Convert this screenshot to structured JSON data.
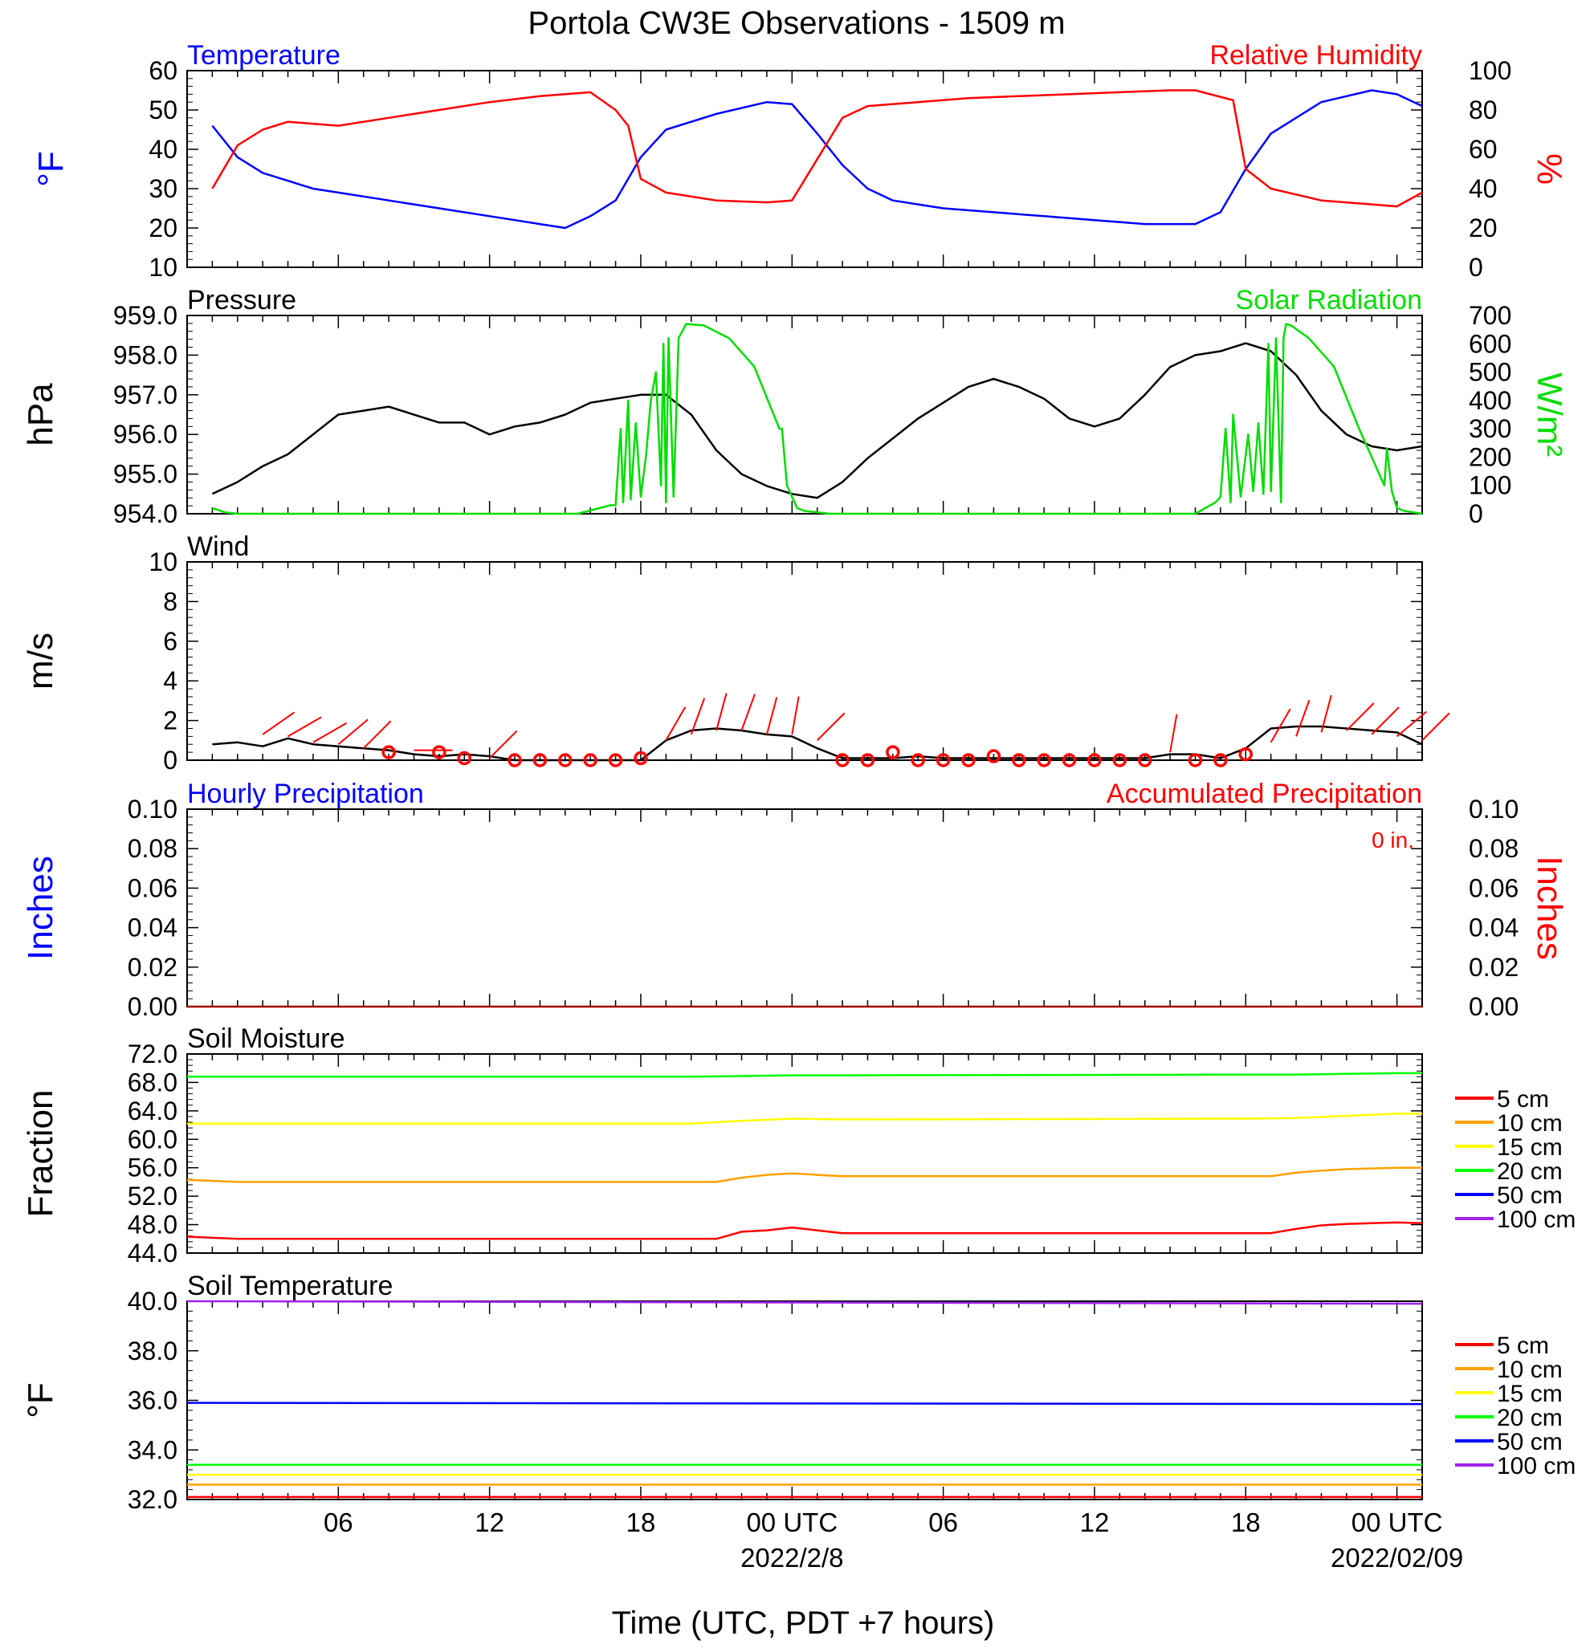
{
  "title": "Portola CW3E Observations - 1509 m",
  "x_axis": {
    "title": "Time (UTC, PDT +7 hours)",
    "tick_labels": [
      {
        "hour": 6,
        "label": "06",
        "date": ""
      },
      {
        "hour": 12,
        "label": "12",
        "date": ""
      },
      {
        "hour": 18,
        "label": "18",
        "date": ""
      },
      {
        "hour": 24,
        "label": "00 UTC",
        "date": "2022/2/8"
      },
      {
        "hour": 30,
        "label": "06",
        "date": ""
      },
      {
        "hour": 36,
        "label": "12",
        "date": ""
      },
      {
        "hour": 42,
        "label": "18",
        "date": ""
      },
      {
        "hour": 48,
        "label": "00 UTC",
        "date": "2022/02/09"
      }
    ]
  },
  "colors": {
    "temperature": "#0000ff",
    "humidity": "#ff0000",
    "pressure": "#000000",
    "solar": "#00dd00",
    "wind": "#000000",
    "barb": "#ff0000",
    "precip": "#a00000",
    "depth_5": "#ff0000",
    "depth_10": "#ffa000",
    "depth_15": "#ffff00",
    "depth_20": "#00ff00",
    "depth_50": "#0000ff",
    "depth_100": "#a020f0"
  },
  "chart_data": [
    {
      "type": "line",
      "left_title": "Temperature",
      "right_title": "Relative Humidity",
      "ylabel_left": "°F",
      "ylabel_right": "%",
      "ylim_left": [
        10,
        60
      ],
      "ylim_right": [
        0,
        100
      ],
      "yticks_left": [
        "60",
        "50",
        "40",
        "30",
        "20",
        "10"
      ],
      "yticks_right": [
        "100",
        "80",
        "60",
        "40",
        "20",
        "0"
      ],
      "series": [
        {
          "axis": "left",
          "color": "#0000ff",
          "x": [
            1,
            2,
            3,
            4,
            5,
            6,
            8,
            10,
            12,
            13,
            14,
            15,
            16,
            17,
            18,
            19,
            21,
            23,
            24,
            25,
            26,
            27,
            28,
            30,
            32,
            34,
            36,
            38,
            40,
            41,
            42,
            43,
            45,
            47,
            48,
            49
          ],
          "y": [
            46,
            38,
            34,
            32,
            30,
            29,
            27,
            25,
            23,
            22,
            21,
            20,
            23,
            27,
            38,
            45,
            49,
            52,
            51.5,
            44,
            36,
            30,
            27,
            25,
            24,
            23,
            22,
            21,
            21,
            24,
            35,
            44,
            52,
            55,
            54,
            51
          ]
        },
        {
          "axis": "right",
          "color": "#ff0000",
          "x": [
            1,
            2,
            3,
            4,
            6,
            8,
            10,
            12,
            14,
            16,
            17,
            17.5,
            18,
            19,
            21,
            23,
            24,
            25,
            26,
            27,
            29,
            31,
            33,
            35,
            37,
            39,
            40,
            41.5,
            42,
            43,
            45,
            47,
            48,
            49
          ],
          "y": [
            40,
            62,
            70,
            74,
            72,
            76,
            80,
            84,
            87,
            89,
            80,
            72,
            45,
            38,
            34,
            33,
            34,
            55,
            76,
            82,
            84,
            86,
            87,
            88,
            89,
            90,
            90,
            85,
            50,
            40,
            34,
            32,
            31,
            38
          ]
        }
      ]
    },
    {
      "type": "line",
      "left_title": "Pressure",
      "right_title": "Solar Radiation",
      "ylabel_left": "hPa",
      "ylabel_right": "W/m²",
      "ylim_left": [
        954,
        959
      ],
      "ylim_right": [
        0,
        700
      ],
      "yticks_left": [
        "959.0",
        "958.0",
        "957.0",
        "956.0",
        "955.0",
        "954.0"
      ],
      "yticks_right": [
        "700",
        "600",
        "500",
        "400",
        "300",
        "200",
        "100",
        "0"
      ],
      "series": [
        {
          "axis": "left",
          "color": "#000000",
          "x": [
            1,
            2,
            3,
            4,
            5,
            6,
            7,
            8,
            10,
            11,
            12,
            13,
            14,
            15,
            16,
            17,
            18,
            19,
            20,
            21,
            22,
            23,
            24,
            25,
            26,
            27,
            28,
            29,
            30,
            31,
            32,
            33,
            34,
            35,
            36,
            37,
            38,
            39,
            40,
            41,
            42,
            43,
            44,
            45,
            46,
            47,
            48,
            49
          ],
          "y": [
            954.5,
            954.8,
            955.2,
            955.5,
            956.0,
            956.5,
            956.6,
            956.7,
            956.3,
            956.3,
            956.0,
            956.2,
            956.3,
            956.5,
            956.8,
            956.9,
            957.0,
            957.0,
            956.5,
            955.6,
            955.0,
            954.7,
            954.5,
            954.4,
            954.8,
            955.4,
            955.9,
            956.4,
            956.8,
            957.2,
            957.4,
            957.2,
            956.9,
            956.4,
            956.2,
            956.4,
            957.0,
            957.7,
            958.0,
            958.1,
            958.3,
            958.1,
            957.5,
            956.6,
            956.0,
            955.7,
            955.6,
            955.7
          ]
        },
        {
          "axis": "right",
          "color": "#00dd00",
          "x": [
            1,
            1.5,
            2,
            15.5,
            16.8,
            17,
            17.2,
            17.3,
            17.5,
            17.6,
            17.8,
            18,
            18.2,
            18.4,
            18.6,
            18.8,
            18.9,
            19.0,
            19.1,
            19.3,
            19.5,
            19.8,
            20.5,
            21.5,
            22.5,
            23.5,
            23.6,
            23.8,
            24.2,
            24.5,
            25,
            25.5,
            26,
            40,
            40.8,
            41,
            41.2,
            41.4,
            41.5,
            41.8,
            42.1,
            42.3,
            42.5,
            42.7,
            42.9,
            43.0,
            43.2,
            43.4,
            43.5,
            43.6,
            43.8,
            44.5,
            45.5,
            46.5,
            47.5,
            47.6,
            47.8,
            48.0,
            48.3,
            49
          ],
          "y": [
            20,
            5,
            0,
            0,
            30,
            30,
            300,
            40,
            400,
            50,
            320,
            60,
            200,
            400,
            500,
            100,
            600,
            40,
            620,
            60,
            620,
            670,
            665,
            620,
            520,
            300,
            300,
            100,
            20,
            10,
            5,
            0,
            0,
            0,
            40,
            60,
            300,
            40,
            350,
            60,
            280,
            80,
            320,
            70,
            600,
            80,
            620,
            40,
            620,
            670,
            665,
            620,
            520,
            300,
            100,
            230,
            80,
            20,
            10,
            0
          ]
        }
      ]
    },
    {
      "type": "line",
      "left_title": "Wind",
      "ylabel_left": "m/s",
      "ylim_left": [
        0,
        10
      ],
      "yticks_left": [
        "10",
        "8",
        "6",
        "4",
        "2",
        "0"
      ],
      "series": [
        {
          "axis": "left",
          "color": "#000000",
          "x": [
            1,
            2,
            3,
            4,
            5,
            6,
            7,
            8,
            9,
            10,
            11,
            12,
            13,
            14,
            15,
            16,
            17,
            18,
            19,
            20,
            21,
            22,
            23,
            24,
            25,
            26,
            27,
            28,
            29,
            30,
            31,
            32,
            33,
            34,
            35,
            36,
            37,
            38,
            39,
            40,
            41,
            42,
            43,
            44,
            45,
            46,
            47,
            48,
            49
          ],
          "y": [
            0.8,
            0.9,
            0.7,
            1.1,
            0.8,
            0.7,
            0.6,
            0.5,
            0.3,
            0.2,
            0.3,
            0.2,
            0,
            0,
            0,
            0,
            0,
            0,
            1,
            1.5,
            1.6,
            1.5,
            1.3,
            1.2,
            0.6,
            0.1,
            0.1,
            0.1,
            0.2,
            0.1,
            0.1,
            0.1,
            0.1,
            0.1,
            0.1,
            0.1,
            0.1,
            0.1,
            0.3,
            0.3,
            0.1,
            0.6,
            1.6,
            1.7,
            1.7,
            1.6,
            1.5,
            1.4,
            0.8
          ]
        },
        {
          "name": "barbs",
          "color": "#ff0000",
          "x": [
            3,
            4,
            5,
            6,
            7,
            8,
            9,
            10,
            11,
            12,
            13,
            14,
            15,
            16,
            17,
            18,
            19,
            20,
            21,
            22,
            23,
            24,
            25,
            26,
            27,
            28,
            29,
            30,
            31,
            32,
            33,
            34,
            35,
            36,
            37,
            38,
            39,
            40,
            41,
            42,
            43,
            44,
            45,
            46,
            47,
            48,
            49
          ],
          "y": [
            1.3,
            1.2,
            0.9,
            0.8,
            0.6,
            0.4,
            0.5,
            0.4,
            0.1,
            0.1,
            0,
            0,
            0,
            0,
            0,
            0.1,
            1.0,
            1.3,
            1.5,
            1.5,
            1.3,
            1.3,
            1.0,
            0,
            0,
            0.4,
            0,
            0,
            0,
            0.2,
            0,
            0,
            0,
            0,
            0,
            0,
            0.4,
            0,
            0,
            0.3,
            0.9,
            1.2,
            1.4,
            1.5,
            1.3,
            1.2,
            1.0
          ],
          "dir_deg": [
            35,
            30,
            30,
            40,
            45,
            0,
            0,
            0,
            0,
            45,
            0,
            0,
            0,
            0,
            0,
            0,
            60,
            70,
            75,
            70,
            75,
            80,
            45,
            0,
            0,
            0,
            0,
            0,
            0,
            0,
            0,
            0,
            0,
            0,
            0,
            0,
            80,
            0,
            0,
            0,
            60,
            70,
            75,
            45,
            45,
            40,
            45
          ]
        }
      ]
    },
    {
      "type": "line",
      "left_title": "Hourly Precipitation",
      "right_title": "Accumulated Precipitation",
      "annotation": "0 in.",
      "ylabel_left": "Inches",
      "ylabel_right": "Inches",
      "ylim_left": [
        0,
        0.1
      ],
      "ylim_right": [
        0,
        0.1
      ],
      "yticks_left": [
        "0.10",
        "0.08",
        "0.06",
        "0.04",
        "0.02",
        "0.00"
      ],
      "yticks_right": [
        "0.10",
        "0.08",
        "0.06",
        "0.04",
        "0.02",
        "0.00"
      ],
      "series": [
        {
          "axis": "left",
          "color": "#a00000",
          "x": [
            0,
            49
          ],
          "y": [
            0,
            0
          ]
        }
      ]
    },
    {
      "type": "line",
      "left_title": "Soil Moisture",
      "ylabel_left": "Fraction",
      "ylim_left": [
        44,
        72
      ],
      "yticks_left": [
        "72.0",
        "68.0",
        "64.0",
        "60.0",
        "56.0",
        "52.0",
        "48.0",
        "44.0"
      ],
      "legend": [
        "5 cm",
        "10 cm",
        "15 cm",
        "20 cm",
        "50 cm",
        "100 cm"
      ],
      "series": [
        {
          "name": "5 cm",
          "color": "#ff0000",
          "x": [
            0,
            2,
            20,
            21,
            22,
            23,
            24,
            25,
            26,
            42,
            43,
            44,
            45,
            46,
            47,
            48,
            49
          ],
          "y": [
            46.3,
            46.0,
            46.0,
            46.0,
            47.0,
            47.2,
            47.6,
            47.2,
            46.8,
            46.8,
            46.8,
            47.4,
            47.9,
            48.1,
            48.2,
            48.3,
            48.2
          ]
        },
        {
          "name": "10 cm",
          "color": "#ffa000",
          "x": [
            0,
            2,
            20,
            21,
            22,
            23,
            24,
            25,
            26,
            42,
            43,
            44,
            45,
            46,
            47,
            48,
            49
          ],
          "y": [
            54.3,
            54.0,
            54.0,
            54.0,
            54.6,
            55.0,
            55.2,
            55.0,
            54.8,
            54.8,
            54.8,
            55.3,
            55.6,
            55.8,
            55.9,
            56.0,
            56.0
          ]
        },
        {
          "name": "15 cm",
          "color": "#ffff00",
          "x": [
            0,
            20,
            22,
            24,
            26,
            42,
            44,
            46,
            48,
            49
          ],
          "y": [
            62.2,
            62.2,
            62.6,
            62.9,
            62.8,
            62.9,
            63.0,
            63.3,
            63.6,
            63.6
          ]
        },
        {
          "name": "20 cm",
          "color": "#00ff00",
          "x": [
            0,
            20,
            22,
            24,
            26,
            42,
            44,
            46,
            48,
            49
          ],
          "y": [
            68.8,
            68.8,
            68.9,
            69.0,
            69.0,
            69.1,
            69.1,
            69.2,
            69.3,
            69.3
          ]
        }
      ]
    },
    {
      "type": "line",
      "left_title": "Soil Temperature",
      "ylabel_left": "°F",
      "ylim_left": [
        32,
        40
      ],
      "yticks_left": [
        "40.0",
        "38.0",
        "36.0",
        "34.0",
        "32.0"
      ],
      "legend": [
        "5 cm",
        "10 cm",
        "15 cm",
        "20 cm",
        "50 cm",
        "100 cm"
      ],
      "series": [
        {
          "name": "5 cm",
          "color": "#ff0000",
          "x": [
            0,
            49
          ],
          "y": [
            32.1,
            32.1
          ]
        },
        {
          "name": "10 cm",
          "color": "#ffa000",
          "x": [
            0,
            49
          ],
          "y": [
            32.6,
            32.6
          ]
        },
        {
          "name": "15 cm",
          "color": "#ffff00",
          "x": [
            0,
            49
          ],
          "y": [
            33.0,
            33.0
          ]
        },
        {
          "name": "20 cm",
          "color": "#00ff00",
          "x": [
            0,
            49
          ],
          "y": [
            33.4,
            33.4
          ]
        },
        {
          "name": "50 cm",
          "color": "#0000ff",
          "x": [
            0,
            49
          ],
          "y": [
            35.9,
            35.85
          ]
        },
        {
          "name": "100 cm",
          "color": "#a020f0",
          "x": [
            0,
            49
          ],
          "y": [
            40.0,
            39.9
          ]
        }
      ]
    }
  ]
}
